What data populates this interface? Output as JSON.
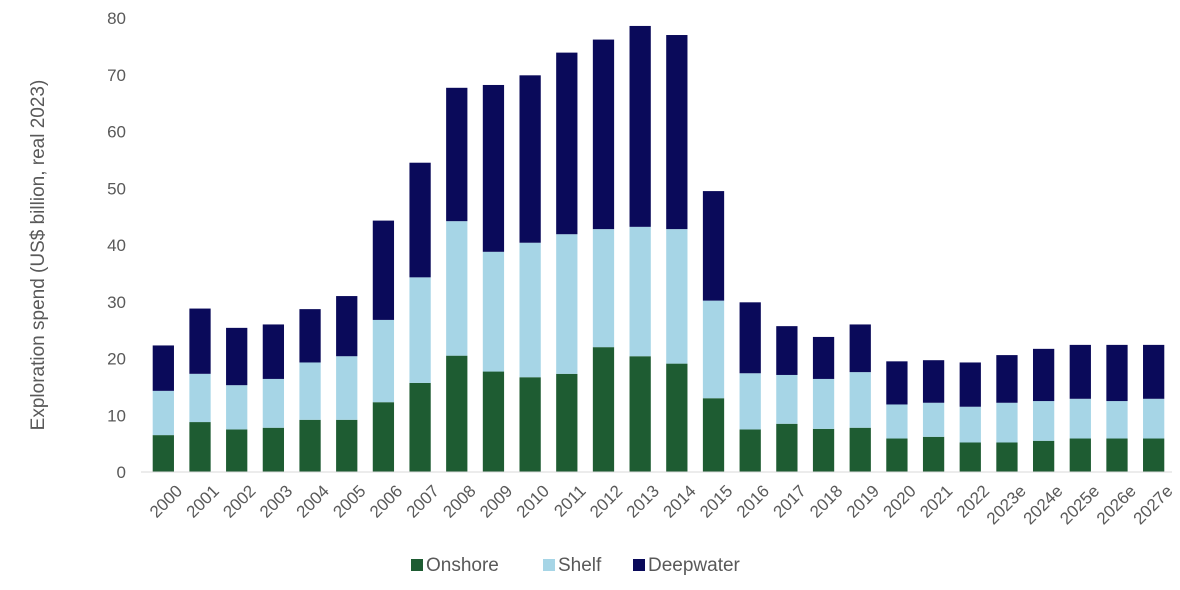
{
  "chart_data": {
    "type": "bar",
    "stacked": true,
    "title": "",
    "xlabel": "",
    "ylabel": "Exploration spend (US$ billion, real 2023)",
    "ylim": [
      0,
      80
    ],
    "yticks": [
      0,
      10,
      20,
      30,
      40,
      50,
      60,
      70,
      80
    ],
    "grid": false,
    "legend_position": "bottom",
    "categories": [
      "2000",
      "2001",
      "2002",
      "2003",
      "2004",
      "2005",
      "2006",
      "2007",
      "2008",
      "2009",
      "2010",
      "2011",
      "2012",
      "2013",
      "2014",
      "2015",
      "2016",
      "2017",
      "2018",
      "2019",
      "2020",
      "2021",
      "2022",
      "2023e",
      "2024e",
      "2025e",
      "2026e",
      "2027e"
    ],
    "series": [
      {
        "name": "Onshore",
        "color": "#1e5c32",
        "values": [
          6.5,
          8.8,
          7.5,
          7.8,
          9.2,
          9.2,
          12.3,
          15.7,
          20.5,
          17.7,
          16.7,
          17.3,
          22.0,
          20.4,
          19.1,
          13.0,
          7.5,
          8.5,
          7.6,
          7.8,
          5.9,
          6.2,
          5.2,
          5.2,
          5.5,
          5.9,
          5.9,
          5.9
        ]
      },
      {
        "name": "Shelf",
        "color": "#a6d5e6",
        "values": [
          7.8,
          8.5,
          7.8,
          8.6,
          10.1,
          11.2,
          14.5,
          18.6,
          23.7,
          21.1,
          23.7,
          24.6,
          20.8,
          22.8,
          23.7,
          17.2,
          9.9,
          8.6,
          8.8,
          9.8,
          6.0,
          6.0,
          6.3,
          7.0,
          7.0,
          7.0,
          6.6,
          7.0
        ]
      },
      {
        "name": "Deepwater",
        "color": "#0a0a5a",
        "values": [
          8.0,
          11.5,
          10.1,
          9.6,
          9.4,
          10.6,
          17.5,
          20.2,
          23.5,
          29.4,
          29.5,
          32.0,
          33.4,
          35.4,
          34.2,
          19.3,
          12.5,
          8.6,
          7.4,
          8.4,
          7.6,
          7.5,
          7.8,
          8.4,
          9.2,
          9.5,
          9.9,
          9.5
        ]
      }
    ]
  }
}
